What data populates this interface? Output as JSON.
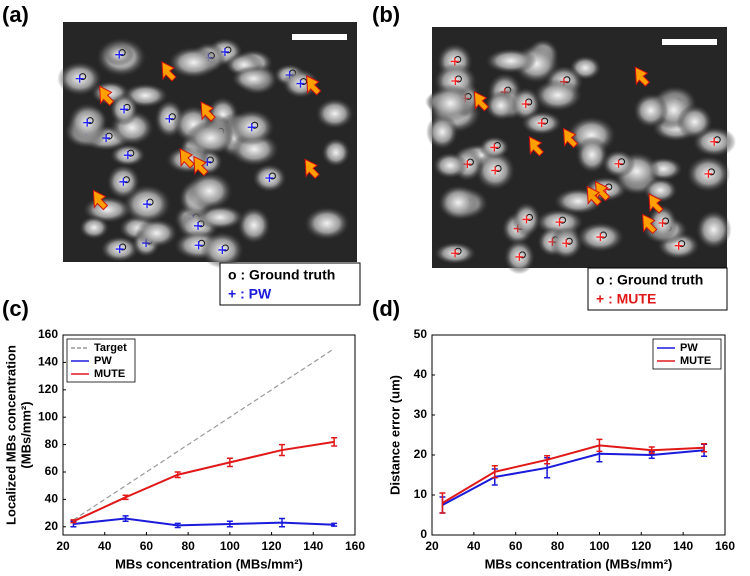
{
  "panels": [
    "(a)",
    "(b)",
    "(c)",
    "(d)"
  ],
  "image_a": {
    "legend": [
      "o : Ground truth",
      "+ : PW"
    ]
  },
  "image_b": {
    "legend": [
      "o : Ground truth",
      "+ : MUTE"
    ]
  },
  "chart_data": [
    {
      "type": "line",
      "xlabel": "MBs concentration (MBs/mm²)",
      "ylabel": [
        "Localized MBs concentration",
        "(MBs/mm²)"
      ],
      "x": [
        25,
        50,
        75,
        100,
        125,
        150
      ],
      "xlim": [
        20,
        160
      ],
      "xticks": [
        20,
        40,
        60,
        80,
        100,
        120,
        140,
        160
      ],
      "ylim": [
        14,
        160
      ],
      "yticks": [
        20,
        40,
        60,
        80,
        100,
        120,
        140,
        160
      ],
      "legend": "upper left",
      "series": [
        {
          "name": "Target",
          "color": "#999999",
          "dash": true,
          "values": [
            25,
            50,
            75,
            100,
            125,
            150
          ]
        },
        {
          "name": "PW",
          "color": "#1a1adb",
          "values": [
            22,
            26,
            21,
            22,
            23,
            21.5
          ],
          "errors": [
            2,
            2,
            1.5,
            2,
            3,
            1
          ]
        },
        {
          "name": "MUTE",
          "color": "#e01818",
          "values": [
            24,
            41.5,
            58,
            67,
            76,
            82
          ],
          "errors": [
            1,
            1.5,
            2,
            3,
            4,
            3
          ]
        }
      ]
    },
    {
      "type": "line",
      "xlabel": "MBs concentration (MBs/mm²)",
      "ylabel": [
        "Distance error (um)"
      ],
      "x": [
        25,
        50,
        75,
        100,
        125,
        150
      ],
      "xlim": [
        20,
        160
      ],
      "xticks": [
        20,
        40,
        60,
        80,
        100,
        120,
        140,
        160
      ],
      "ylim": [
        0,
        50
      ],
      "yticks": [
        0,
        10,
        20,
        30,
        40,
        50
      ],
      "legend": "upper right",
      "series": [
        {
          "name": "PW",
          "color": "#1a1adb",
          "values": [
            7.5,
            14.5,
            16.8,
            20.3,
            20,
            21.2
          ],
          "errors": [
            2,
            2,
            2.5,
            2,
            0.8,
            1.5
          ]
        },
        {
          "name": "MUTE",
          "color": "#e01818",
          "values": [
            8,
            15.8,
            18.8,
            22.4,
            21.2,
            21.8
          ],
          "errors": [
            2.5,
            1.5,
            1,
            1.5,
            0.8,
            1
          ]
        }
      ]
    }
  ]
}
